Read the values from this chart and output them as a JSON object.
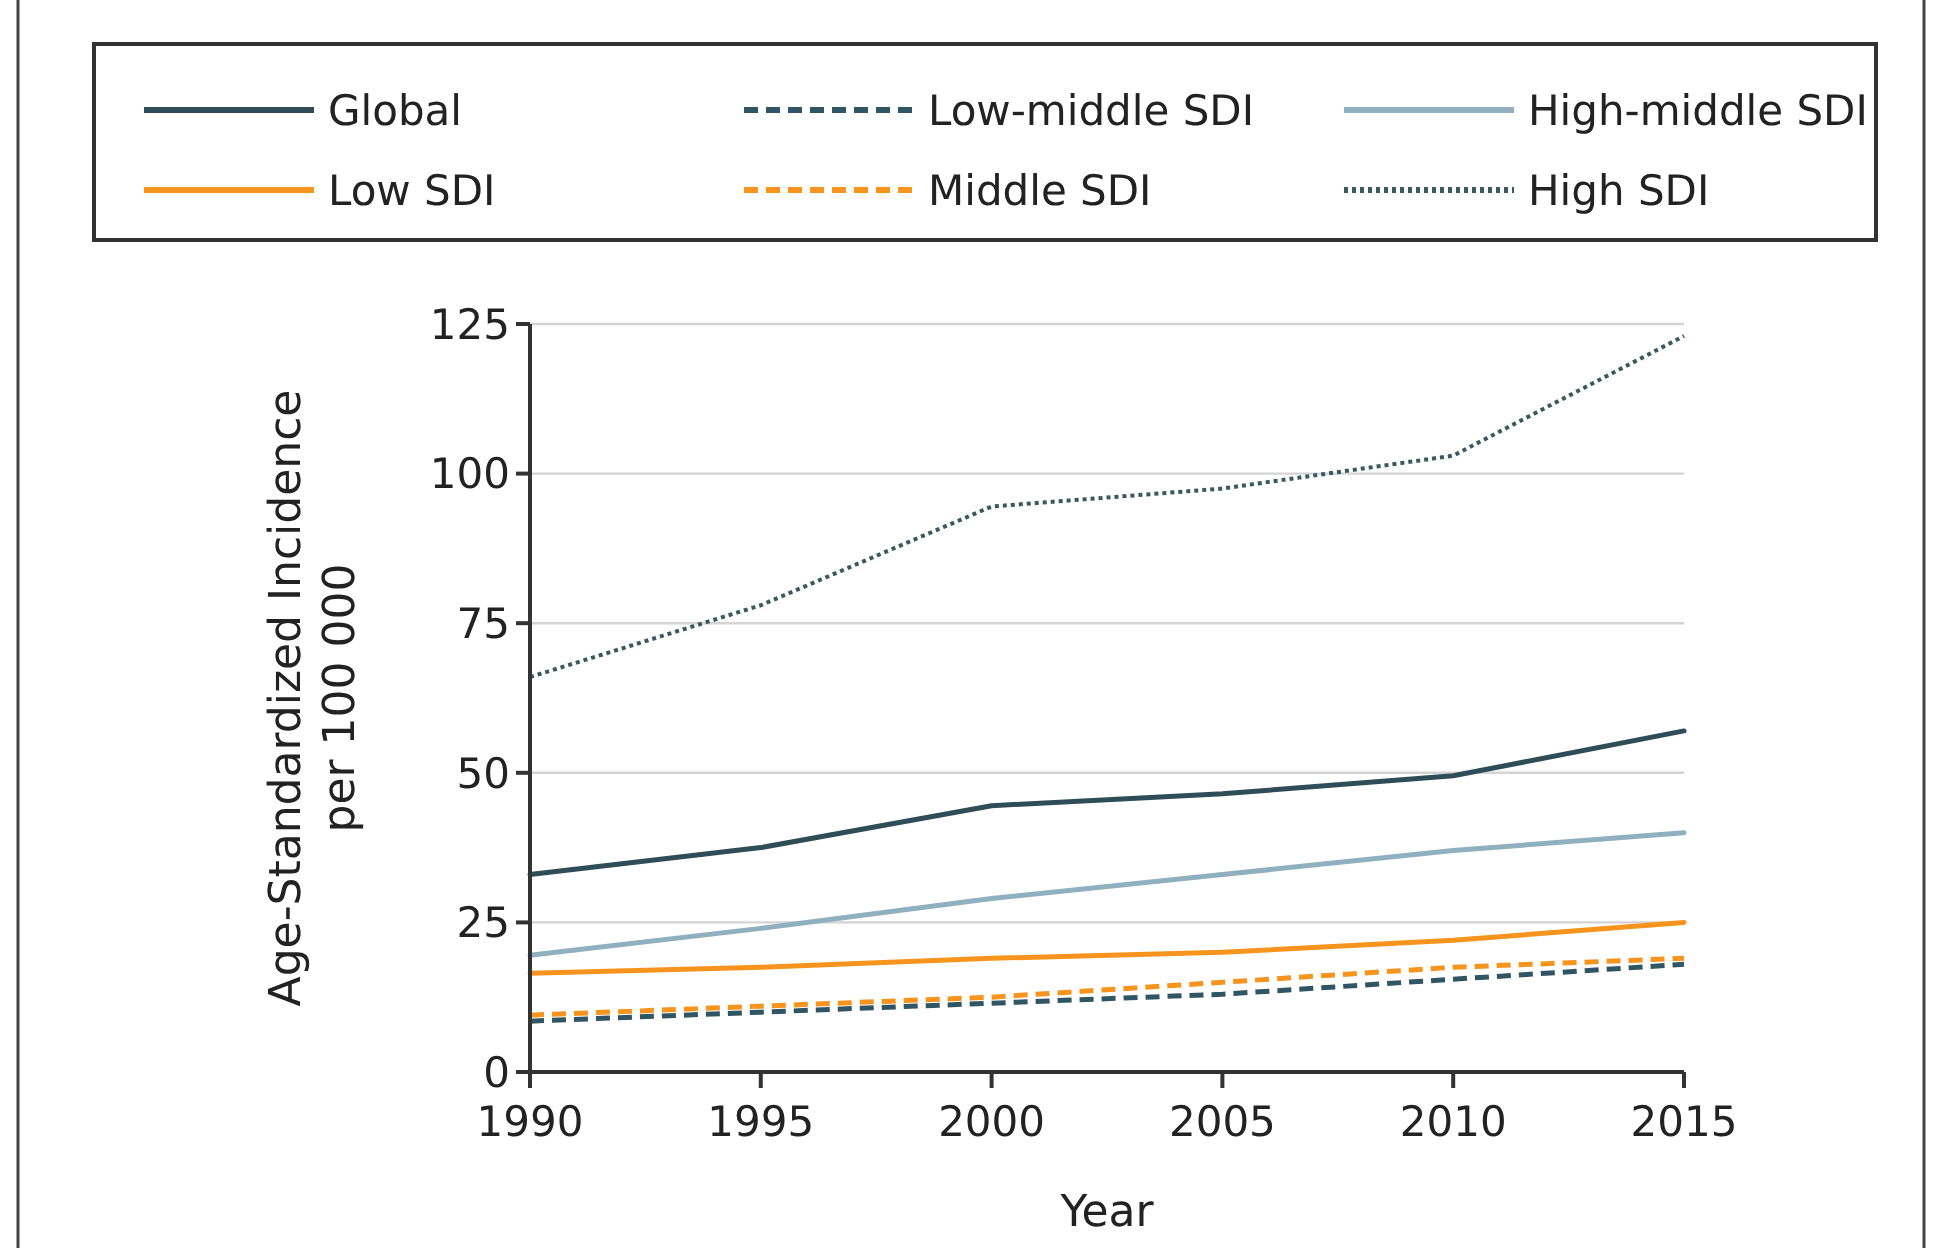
{
  "chart_data": {
    "type": "line",
    "xlabel": "Year",
    "ylabel": "Age-Standardized Incidence\nper 100 000",
    "x": [
      1990,
      1995,
      2000,
      2005,
      2010,
      2015
    ],
    "xlim": [
      1990,
      2015
    ],
    "xticks": [
      1990,
      1995,
      2000,
      2005,
      2010,
      2015
    ],
    "ylim": [
      0,
      125
    ],
    "yticks": [
      0,
      25,
      50,
      75,
      100,
      125
    ],
    "grid": "y",
    "legend": "top",
    "series": [
      {
        "name": "Global",
        "color": "#2e4d57",
        "line_style": "solid",
        "values": [
          33,
          37.5,
          44.5,
          46.5,
          49.5,
          57
        ]
      },
      {
        "name": "Low SDI",
        "color": "#f7941d",
        "line_style": "solid",
        "values": [
          16.5,
          17.5,
          19,
          20,
          22,
          25
        ]
      },
      {
        "name": "Low-middle SDI",
        "color": "#2f5662",
        "line_style": "dashed",
        "values": [
          8.5,
          10,
          11.5,
          13,
          15.5,
          18
        ]
      },
      {
        "name": "Middle SDI",
        "color": "#f7941d",
        "line_style": "dashed",
        "values": [
          9.5,
          11,
          12.5,
          15,
          17.5,
          19
        ]
      },
      {
        "name": "High-middle SDI",
        "color": "#8fb0bf",
        "line_style": "solid",
        "values": [
          19.5,
          24,
          29,
          33,
          37,
          40
        ]
      },
      {
        "name": "High SDI",
        "color": "#3a5862",
        "line_style": "dotted",
        "values": [
          66,
          78,
          94.5,
          97.5,
          103,
          123
        ]
      }
    ]
  }
}
